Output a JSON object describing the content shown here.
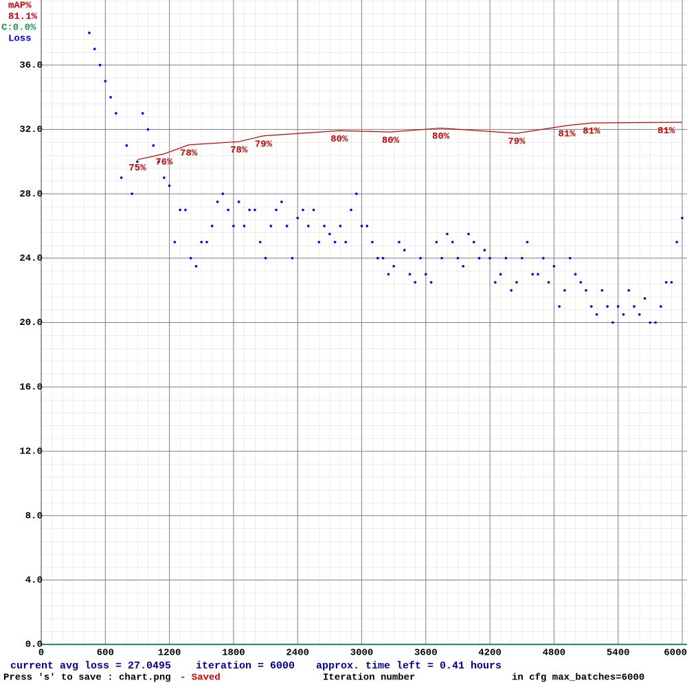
{
  "chart_data": {
    "type": "scatter",
    "map_current": "81.1%",
    "map_c": "C:0.0%",
    "x_label": "Iteration number",
    "footer": {
      "avg_loss": "current avg loss = 27.0495",
      "iteration": "iteration = 6000",
      "time_left": "approx. time left = 0.41 hours",
      "save_hint": "Press 's' to save : chart.png",
      "saved": "- Saved",
      "max_batches": "in cfg max_batches=6000"
    },
    "x": [
      450,
      500,
      550,
      600,
      650,
      700,
      750,
      800,
      850,
      900,
      950,
      1000,
      1050,
      1100,
      1150,
      1200,
      1250,
      1300,
      1350,
      1400,
      1450,
      1500,
      1550,
      1600,
      1650,
      1700,
      1750,
      1800,
      1850,
      1900,
      1950,
      2000,
      2050,
      2100,
      2150,
      2200,
      2250,
      2300,
      2350,
      2400,
      2450,
      2500,
      2550,
      2600,
      2650,
      2700,
      2750,
      2800,
      2850,
      2900,
      2950,
      3000,
      3050,
      3100,
      3150,
      3200,
      3250,
      3300,
      3350,
      3400,
      3450,
      3500,
      3550,
      3600,
      3650,
      3700,
      3750,
      3800,
      3850,
      3900,
      3950,
      4000,
      4050,
      4100,
      4150,
      4200,
      4250,
      4300,
      4350,
      4400,
      4450,
      4500,
      4550,
      4600,
      4650,
      4700,
      4750,
      4800,
      4850,
      4900,
      4950,
      5000,
      5050,
      5100,
      5150,
      5200,
      5250,
      5300,
      5350,
      5400,
      5450,
      5500,
      5550,
      5600,
      5650,
      5700,
      5750,
      5800,
      5850,
      5900,
      5950,
      6000
    ],
    "series": [
      {
        "name": "Loss",
        "color": "#0000ff",
        "values": [
          38,
          37,
          36,
          35,
          34,
          33,
          29,
          31,
          28,
          30,
          33,
          32,
          31,
          30,
          29,
          28.5,
          25,
          27,
          27,
          24,
          23.5,
          25,
          25,
          26,
          27.5,
          28,
          27,
          26,
          27.5,
          26,
          27,
          27,
          25,
          24,
          26,
          27,
          27.5,
          26,
          24,
          26.5,
          27,
          26,
          27,
          25,
          26,
          25.5,
          25,
          26,
          25,
          27,
          28,
          26,
          26,
          25,
          24,
          24,
          23,
          23.5,
          25,
          24.5,
          23,
          22.5,
          24,
          23,
          22.5,
          25,
          24,
          25.5,
          25,
          24,
          23.5,
          25.5,
          25,
          24,
          24.5,
          24,
          22.5,
          23,
          24,
          22,
          22.5,
          24,
          25,
          23,
          23,
          24,
          22.5,
          23.5,
          21,
          22,
          24,
          23,
          22.5,
          22,
          21,
          20.5,
          22,
          21,
          20,
          21,
          20.5,
          22,
          21,
          20.5,
          21.5,
          20,
          20,
          21,
          22.5,
          22.5,
          25,
          26.5
        ]
      },
      {
        "name": "mAP%",
        "color": "#cc0000",
        "axis": "y2",
        "x": [
          900,
          1150,
          1380,
          1850,
          2080,
          2790,
          3270,
          3740,
          4450,
          4920,
          5150,
          5850,
          6000
        ],
        "values": [
          75.3,
          76.2,
          77.6,
          78.1,
          79.0,
          79.8,
          79.6,
          80.2,
          79.4,
          80.6,
          81.0,
          81.1,
          81.1
        ],
        "value_labels": [
          "75%",
          "76%",
          "78%",
          "78%",
          "79%",
          "80%",
          "80%",
          "80%",
          "79%",
          "81%",
          "81%",
          "81%",
          null
        ]
      }
    ],
    "xlim": [
      0,
      6000
    ],
    "xticks": [
      0,
      600,
      1200,
      1800,
      2400,
      3000,
      3600,
      4200,
      4800,
      5400,
      6000
    ],
    "ylim": [
      0,
      40
    ],
    "yticks": [
      {
        "value": 0,
        "label": "0.0"
      },
      {
        "value": 4,
        "label": "4.0"
      },
      {
        "value": 8,
        "label": "8.0"
      },
      {
        "value": 12,
        "label": "12.0"
      },
      {
        "value": 16,
        "label": "16.0"
      },
      {
        "value": 20,
        "label": "20.0"
      },
      {
        "value": 24,
        "label": "24.0"
      },
      {
        "value": 28,
        "label": "28.0"
      },
      {
        "value": 32,
        "label": "32.0"
      },
      {
        "value": 36,
        "label": "36.0"
      }
    ],
    "y2lim": [
      0,
      100
    ],
    "grid": true
  }
}
